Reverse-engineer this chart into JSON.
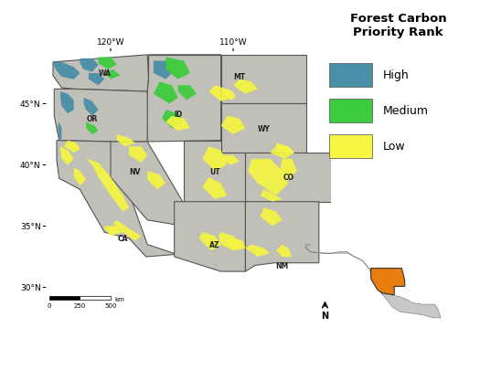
{
  "title": "Forest Carbon\nPriority Rank",
  "legend_items": [
    {
      "label": "High",
      "color": "#4a8fa8"
    },
    {
      "label": "Medium",
      "color": "#3dcc3d"
    },
    {
      "label": "Low",
      "color": "#f5f542"
    }
  ],
  "map_bg": "#c0bfb8",
  "state_border_color": "#555555",
  "state_border_lw": 0.8,
  "lon_ticks": [
    -120,
    -110
  ],
  "lon_labels": [
    "120°W",
    "110°W"
  ],
  "lat_ticks": [
    30,
    35,
    40,
    45
  ],
  "lat_labels": [
    "30°N",
    "35°N",
    "40°N",
    "45°N"
  ],
  "state_labels": [
    {
      "name": "WA",
      "lon": -120.5,
      "lat": 47.5
    },
    {
      "name": "OR",
      "lon": -121.5,
      "lat": 43.8
    },
    {
      "name": "ID",
      "lon": -114.5,
      "lat": 44.2
    },
    {
      "name": "NV",
      "lon": -118.0,
      "lat": 39.5
    },
    {
      "name": "UT",
      "lon": -111.5,
      "lat": 39.5
    },
    {
      "name": "WY",
      "lon": -107.5,
      "lat": 43.0
    },
    {
      "name": "MT",
      "lon": -109.5,
      "lat": 47.2
    },
    {
      "name": "CO",
      "lon": -105.5,
      "lat": 39.0
    },
    {
      "name": "AZ",
      "lon": -111.5,
      "lat": 33.5
    },
    {
      "name": "NM",
      "lon": -106.0,
      "lat": 31.8
    },
    {
      "name": "CA",
      "lon": -119.0,
      "lat": 34.0
    }
  ],
  "inset_orange_color": "#e87e10",
  "inset_gray_color": "#b8b8b8",
  "inset_land_color": "#c8c8c8",
  "xmin": -125.5,
  "xmax": -102.0,
  "ymin": 28.5,
  "ymax": 49.5
}
